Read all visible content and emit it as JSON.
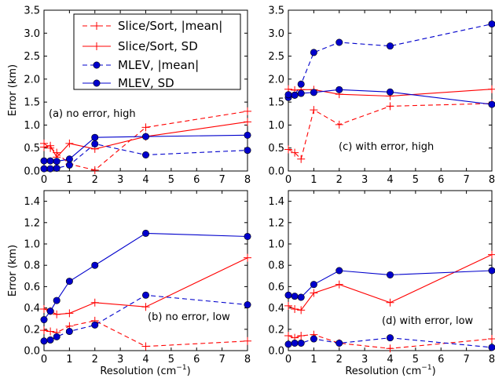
{
  "colors": {
    "slice_sort": "#ff0000",
    "mlev": "#0000cc"
  },
  "legend": {
    "entries": [
      {
        "label": "Slice/Sort, |mean|",
        "series": "slice_mean"
      },
      {
        "label": "Slice/Sort, SD",
        "series": "slice_sd"
      },
      {
        "label": "MLEV, |mean|",
        "series": "mlev_mean"
      },
      {
        "label": "MLEV, SD",
        "series": "mlev_sd"
      }
    ],
    "placement": "top panel (a), upper right"
  },
  "axes_labels": {
    "ylabel": "Error (km)",
    "xlabel_prefix": "Resolution (cm",
    "xlabel_sup": "−1",
    "xlabel_suffix": ")"
  },
  "chart_data": [
    {
      "type": "line",
      "panel_label": "(a) no error, high",
      "x": [
        0,
        0.25,
        0.5,
        1,
        2,
        4,
        8
      ],
      "xlim": [
        0,
        8
      ],
      "ylim": [
        0,
        3.5
      ],
      "xticks": [
        "0",
        "1",
        "2",
        "3",
        "4",
        "5",
        "6",
        "7",
        "8"
      ],
      "yticks": [
        "0.0",
        "0.5",
        "1.0",
        "1.5",
        "2.0",
        "2.5",
        "3.0",
        "3.5"
      ],
      "xlabel": "",
      "ylabel": "Error (km)",
      "series": [
        {
          "key": "slice_mean",
          "name": "Slice/Sort, |mean|",
          "values": [
            0.6,
            0.5,
            0.4,
            0.15,
            0.02,
            0.95,
            1.3
          ]
        },
        {
          "key": "slice_sd",
          "name": "Slice/Sort, SD",
          "values": [
            0.52,
            0.55,
            0.3,
            0.6,
            0.48,
            0.75,
            1.07
          ]
        },
        {
          "key": "mlev_mean",
          "name": "MLEV, |mean|",
          "values": [
            0.05,
            0.05,
            0.06,
            0.13,
            0.59,
            0.35,
            0.45
          ]
        },
        {
          "key": "mlev_sd",
          "name": "MLEV, SD",
          "values": [
            0.22,
            0.22,
            0.21,
            0.26,
            0.73,
            0.75,
            0.78
          ]
        }
      ]
    },
    {
      "type": "line",
      "panel_label": "(c) with error, high",
      "x": [
        0,
        0.25,
        0.5,
        1,
        2,
        4,
        8
      ],
      "xlim": [
        0,
        8
      ],
      "ylim": [
        0,
        3.5
      ],
      "xticks": [
        "0",
        "1",
        "2",
        "3",
        "4",
        "5",
        "6",
        "7",
        "8"
      ],
      "yticks": [
        "0.0",
        "0.5",
        "1.0",
        "1.5",
        "2.0",
        "2.5",
        "3.0",
        "3.5"
      ],
      "xlabel": "",
      "ylabel": "",
      "series": [
        {
          "key": "slice_mean",
          "name": "Slice/Sort, |mean|",
          "values": [
            0.47,
            0.4,
            0.26,
            1.33,
            1.01,
            1.41,
            1.47
          ]
        },
        {
          "key": "slice_sd",
          "name": "Slice/Sort, SD",
          "values": [
            1.78,
            1.76,
            1.77,
            1.77,
            1.67,
            1.63,
            1.78
          ]
        },
        {
          "key": "mlev_mean",
          "name": "MLEV, |mean|",
          "values": [
            1.6,
            1.65,
            1.89,
            2.58,
            2.8,
            2.72,
            3.2
          ]
        },
        {
          "key": "mlev_sd",
          "name": "MLEV, SD",
          "values": [
            1.66,
            1.65,
            1.69,
            1.71,
            1.77,
            1.72,
            1.45
          ]
        }
      ]
    },
    {
      "type": "line",
      "panel_label": "(b) no error, low",
      "x": [
        0,
        0.25,
        0.5,
        1,
        2,
        4,
        8
      ],
      "xlim": [
        0,
        8
      ],
      "ylim": [
        0,
        1.5
      ],
      "xticks": [
        "0",
        "1",
        "2",
        "3",
        "4",
        "5",
        "6",
        "7",
        "8"
      ],
      "yticks": [
        "0.0",
        "0.2",
        "0.4",
        "0.6",
        "0.8",
        "1.0",
        "1.2",
        "1.4"
      ],
      "xlabel": "Resolution (cm−1)",
      "ylabel": "Error (km)",
      "series": [
        {
          "key": "slice_mean",
          "name": "Slice/Sort, |mean|",
          "values": [
            0.19,
            0.18,
            0.17,
            0.23,
            0.28,
            0.04,
            0.09
          ]
        },
        {
          "key": "slice_sd",
          "name": "Slice/Sort, SD",
          "values": [
            0.39,
            0.37,
            0.34,
            0.35,
            0.45,
            0.41,
            0.87
          ]
        },
        {
          "key": "mlev_mean",
          "name": "MLEV, |mean|",
          "values": [
            0.09,
            0.1,
            0.13,
            0.18,
            0.24,
            0.52,
            0.43
          ]
        },
        {
          "key": "mlev_sd",
          "name": "MLEV, SD",
          "values": [
            0.29,
            0.37,
            0.47,
            0.65,
            0.8,
            1.1,
            1.07
          ]
        }
      ]
    },
    {
      "type": "line",
      "panel_label": "(d) with error, low",
      "x": [
        0,
        0.25,
        0.5,
        1,
        2,
        4,
        8
      ],
      "xlim": [
        0,
        8
      ],
      "ylim": [
        0,
        1.5
      ],
      "xticks": [
        "0",
        "1",
        "2",
        "3",
        "4",
        "5",
        "6",
        "7",
        "8"
      ],
      "yticks": [
        "0.0",
        "0.2",
        "0.4",
        "0.6",
        "0.8",
        "1.0",
        "1.2",
        "1.4"
      ],
      "xlabel": "Resolution (cm−1)",
      "ylabel": "",
      "series": [
        {
          "key": "slice_mean",
          "name": "Slice/Sort, |mean|",
          "values": [
            0.14,
            0.12,
            0.14,
            0.15,
            0.07,
            0.02,
            0.11
          ]
        },
        {
          "key": "slice_sd",
          "name": "Slice/Sort, SD",
          "values": [
            0.42,
            0.39,
            0.38,
            0.54,
            0.62,
            0.45,
            0.9
          ]
        },
        {
          "key": "mlev_mean",
          "name": "MLEV, |mean|",
          "values": [
            0.06,
            0.07,
            0.07,
            0.11,
            0.07,
            0.12,
            0.03
          ]
        },
        {
          "key": "mlev_sd",
          "name": "MLEV, SD",
          "values": [
            0.52,
            0.51,
            0.5,
            0.62,
            0.75,
            0.71,
            0.75
          ]
        }
      ]
    }
  ]
}
